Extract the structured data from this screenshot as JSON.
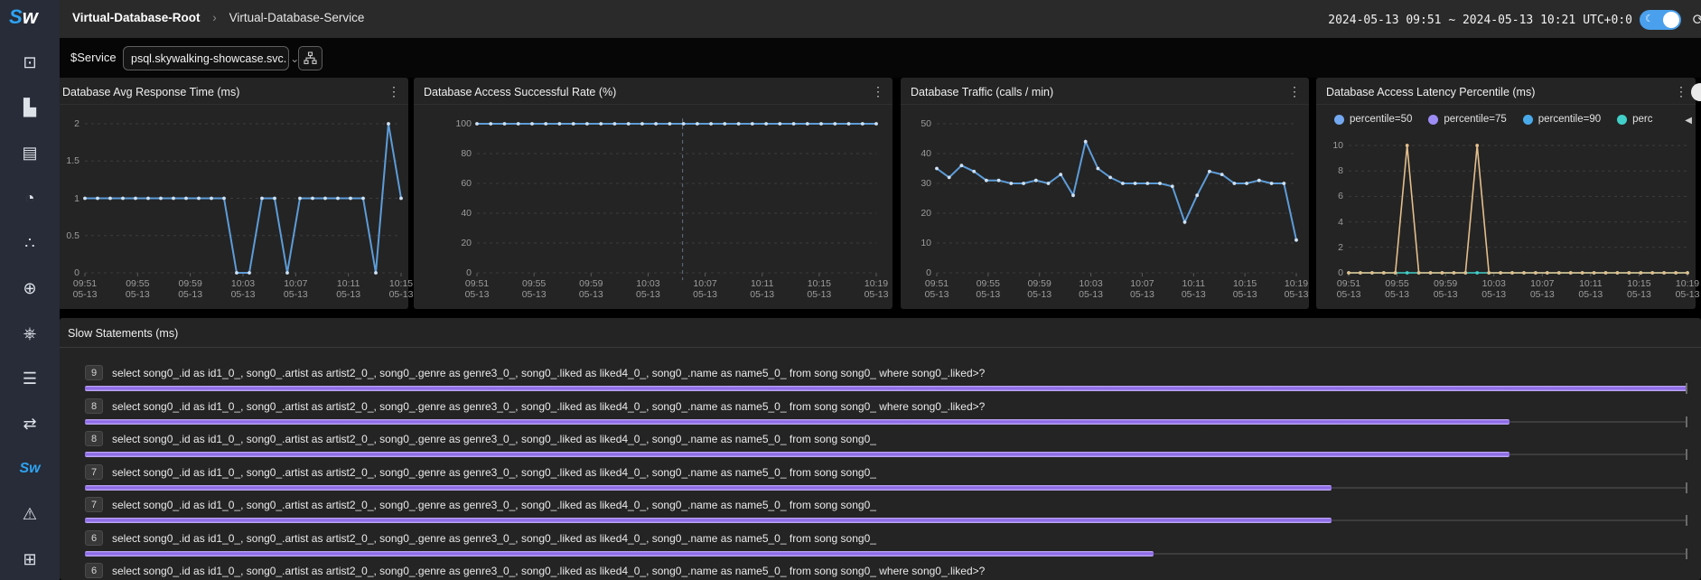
{
  "topbar": {
    "logo_text": "Sw",
    "breadcrumb_root": "Virtual-Database-Root",
    "breadcrumb_separator": "›",
    "breadcrumb_current": "Virtual-Database-Service",
    "time_range": "2024-05-13 09:51 ~ 2024-05-13 10:21",
    "timezone": "UTC+0:0",
    "refresh_icon": "⟳",
    "toggle_icon": "☾"
  },
  "toolbar": {
    "service_label": "$Service",
    "service_value": "psql.skywalking-showcase.svc.",
    "chevron": "⌄"
  },
  "sidebar": {
    "items": [
      {
        "name": "marketplace",
        "glyph": "⊡"
      },
      {
        "name": "general-service",
        "glyph": "▙"
      },
      {
        "name": "virtual-database",
        "glyph": "▤"
      },
      {
        "name": "virtual-cache",
        "glyph": "◔"
      },
      {
        "name": "virtual-mq",
        "glyph": "∴"
      },
      {
        "name": "browser",
        "glyph": "⊕"
      },
      {
        "name": "kubernetes",
        "glyph": "⎈"
      },
      {
        "name": "infrastructure",
        "glyph": "☰"
      },
      {
        "name": "gateway",
        "glyph": "⇄"
      },
      {
        "name": "self-observability",
        "glyph": "Sw",
        "active": true
      },
      {
        "name": "alerting",
        "glyph": "⚠"
      },
      {
        "name": "settings",
        "glyph": "⊞"
      }
    ]
  },
  "chart_data": [
    {
      "type": "line",
      "title": "Database Avg Response Time (ms)",
      "ylim": [
        0,
        2
      ],
      "yticks": [
        2,
        1.5,
        1,
        0.5,
        0
      ],
      "x_time_labels": [
        "09:51",
        "09:55",
        "09:59",
        "10:03",
        "10:07",
        "10:11",
        "10:15"
      ],
      "x_date_label": "05-13",
      "grid": "dashed",
      "series": [
        {
          "name": "response-time",
          "color": "#5d9cd8",
          "values": [
            1,
            1,
            1,
            1,
            1,
            1,
            1,
            1,
            1,
            1,
            1,
            1,
            0,
            0,
            1,
            1,
            0,
            1,
            1,
            1,
            1,
            1,
            1,
            0,
            2,
            1
          ]
        }
      ]
    },
    {
      "type": "line",
      "title": "Database Access Successful Rate (%)",
      "ylim": [
        0,
        100
      ],
      "yticks": [
        100,
        80,
        60,
        40,
        20,
        0
      ],
      "x_time_labels": [
        "09:51",
        "09:55",
        "09:59",
        "10:03",
        "10:07",
        "10:11",
        "10:15",
        "10:19"
      ],
      "x_date_label": "05-13",
      "grid": "dashed",
      "crosshair_fraction": 0.515,
      "series": [
        {
          "name": "success-rate",
          "color": "#5d9cd8",
          "values": [
            100,
            100,
            100,
            100,
            100,
            100,
            100,
            100,
            100,
            100,
            100,
            100,
            100,
            100,
            100,
            100,
            100,
            100,
            100,
            100,
            100,
            100,
            100,
            100,
            100,
            100,
            100,
            100,
            100,
            100
          ]
        }
      ]
    },
    {
      "type": "line",
      "title": "Database Traffic (calls / min)",
      "ylim": [
        0,
        50
      ],
      "yticks": [
        50,
        40,
        30,
        20,
        10,
        0
      ],
      "x_time_labels": [
        "09:51",
        "09:55",
        "09:59",
        "10:03",
        "10:07",
        "10:11",
        "10:15",
        "10:19"
      ],
      "x_date_label": "05-13",
      "grid": "dashed",
      "series": [
        {
          "name": "traffic",
          "color": "#5d9cd8",
          "values": [
            35,
            32,
            36,
            34,
            31,
            31,
            30,
            30,
            31,
            30,
            33,
            26,
            44,
            35,
            32,
            30,
            30,
            30,
            30,
            29,
            17,
            26,
            34,
            33,
            30,
            30,
            31,
            30,
            30,
            11
          ]
        }
      ]
    },
    {
      "type": "line",
      "title": "Database Access Latency Percentile (ms)",
      "ylim": [
        0,
        10
      ],
      "yticks": [
        10,
        8,
        6,
        4,
        2,
        0
      ],
      "x_time_labels": [
        "09:51",
        "09:55",
        "09:59",
        "10:03",
        "10:07",
        "10:11",
        "10:15",
        "10:19"
      ],
      "x_date_label": "05-13",
      "grid": "dashed",
      "legend": [
        {
          "label": "percentile=50",
          "color": "#73a8f1"
        },
        {
          "label": "percentile=75",
          "color": "#9c8cf3"
        },
        {
          "label": "percentile=90",
          "color": "#49aaea"
        },
        {
          "label": "perc",
          "color": "#41cfc9"
        }
      ],
      "legend_overflow_arrow": "◀",
      "series": [
        {
          "name": "percentile-low-band",
          "color": "#41cfc9",
          "values": [
            0,
            0,
            0,
            0,
            0,
            0,
            0,
            0,
            0,
            0,
            0,
            0,
            0,
            0,
            0,
            0,
            0,
            0,
            0,
            0,
            0,
            0,
            0,
            0,
            0,
            0,
            0,
            0,
            0,
            0
          ]
        },
        {
          "name": "percentile-top",
          "color": "#e3be8c",
          "values": [
            0,
            0,
            0,
            0,
            0,
            10,
            0,
            0,
            0,
            0,
            0,
            10,
            0,
            0,
            0,
            0,
            0,
            0,
            0,
            0,
            0,
            0,
            0,
            0,
            0,
            0,
            0,
            0,
            0,
            0
          ]
        }
      ]
    }
  ],
  "slow_statements": {
    "title": "Slow Statements (ms)",
    "max_value": 9,
    "rows": [
      {
        "value": 9,
        "sql": "select song0_.id as id1_0_, song0_.artist as artist2_0_, song0_.genre as genre3_0_, song0_.liked as liked4_0_, song0_.name as name5_0_  from song song0_  where song0_.liked>?"
      },
      {
        "value": 8,
        "sql": "select song0_.id as id1_0_, song0_.artist as artist2_0_, song0_.genre as genre3_0_, song0_.liked as liked4_0_, song0_.name as name5_0_  from song song0_  where song0_.liked>?"
      },
      {
        "value": 8,
        "sql": "select song0_.id as id1_0_, song0_.artist as artist2_0_, song0_.genre as genre3_0_, song0_.liked as liked4_0_, song0_.name as name5_0_  from song song0_"
      },
      {
        "value": 7,
        "sql": "select song0_.id as id1_0_, song0_.artist as artist2_0_, song0_.genre as genre3_0_, song0_.liked as liked4_0_, song0_.name as name5_0_  from song song0_"
      },
      {
        "value": 7,
        "sql": "select song0_.id as id1_0_, song0_.artist as artist2_0_, song0_.genre as genre3_0_, song0_.liked as liked4_0_, song0_.name as name5_0_  from song song0_"
      },
      {
        "value": 6,
        "sql": "select song0_.id as id1_0_, song0_.artist as artist2_0_, song0_.genre as genre3_0_, song0_.liked as liked4_0_, song0_.name as name5_0_  from song song0_"
      },
      {
        "value": 6,
        "sql": "select song0_.id as id1_0_, song0_.artist as artist2_0_, song0_.genre as genre3_0_, song0_.liked as liked4_0_, song0_.name as name5_0_  from song song0_  where song0_.liked>?"
      }
    ]
  }
}
